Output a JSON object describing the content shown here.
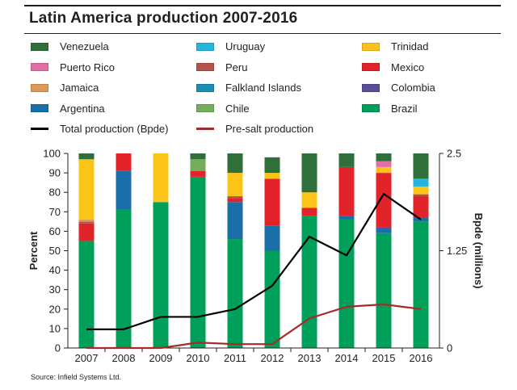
{
  "chart_data": {
    "type": "bar",
    "title": "Latin America production 2007-2016",
    "categories": [
      "2007",
      "2008",
      "2009",
      "2010",
      "2011",
      "2012",
      "2013",
      "2014",
      "2015",
      "2016"
    ],
    "ylabel": "Percent",
    "ylim": [
      0,
      100
    ],
    "yticks": [
      "0",
      "10",
      "20",
      "30",
      "40",
      "50",
      "60",
      "70",
      "80",
      "90",
      "100"
    ],
    "y2label": "Bpde (millions)",
    "y2lim": [
      0,
      2.5
    ],
    "y2ticks": [
      "0",
      "1.25",
      "2.5"
    ],
    "stacked_series": [
      {
        "name": "Brazil",
        "color": "#00a05a",
        "values": [
          55,
          71,
          75,
          88,
          56,
          50,
          68,
          66,
          59,
          65
        ]
      },
      {
        "name": "Argentina",
        "color": "#1b6fa8",
        "values": [
          0,
          20,
          0,
          0,
          19,
          13,
          0,
          2,
          2,
          2
        ]
      },
      {
        "name": "Colombia",
        "color": "#5a4e9a",
        "values": [
          0,
          0,
          0,
          0,
          0,
          0,
          0,
          0,
          1,
          0
        ]
      },
      {
        "name": "Mexico",
        "color": "#e2232a",
        "values": [
          9,
          9,
          0,
          3,
          2,
          24,
          4,
          25,
          28,
          11
        ]
      },
      {
        "name": "Peru",
        "color": "#b5534b",
        "values": [
          1,
          0,
          0,
          0,
          1,
          0,
          0,
          0,
          0,
          1
        ]
      },
      {
        "name": "Jamaica",
        "color": "#e09a57",
        "values": [
          1,
          0,
          0,
          0,
          0,
          0,
          0,
          0,
          0,
          0
        ]
      },
      {
        "name": "Trinidad",
        "color": "#fcc419",
        "values": [
          31,
          0,
          25,
          0,
          12,
          3,
          8,
          0,
          3,
          4
        ]
      },
      {
        "name": "Puerto Rico",
        "color": "#e36ea5",
        "values": [
          0,
          0,
          0,
          0,
          0,
          0,
          0,
          0,
          3,
          0
        ]
      },
      {
        "name": "Falkland Islands",
        "color": "#1a8fb5",
        "values": [
          0,
          0,
          0,
          0,
          0,
          0,
          0,
          0,
          0,
          0
        ]
      },
      {
        "name": "Chile",
        "color": "#74ad5e",
        "values": [
          0,
          0,
          0,
          6,
          0,
          0,
          0,
          0,
          0,
          0
        ]
      },
      {
        "name": "Uruguay",
        "color": "#27b4dd",
        "values": [
          0,
          0,
          0,
          0,
          0,
          0,
          0,
          0,
          0,
          4
        ]
      },
      {
        "name": "Venezuela",
        "color": "#2f6f3a",
        "values": [
          3,
          0,
          0,
          3,
          10,
          8,
          20,
          7,
          4,
          13
        ]
      }
    ],
    "line_series": [
      {
        "name": "Total production (Bpde)",
        "color": "#000000",
        "axis": "right",
        "values": [
          0.24,
          0.24,
          0.4,
          0.4,
          0.5,
          0.8,
          1.43,
          1.19,
          1.98,
          1.65
        ]
      },
      {
        "name": "Pre-salt production",
        "color": "#a32c2c",
        "axis": "right",
        "values": [
          0,
          0,
          0,
          0.07,
          0.05,
          0.05,
          0.38,
          0.53,
          0.56,
          0.5
        ]
      }
    ],
    "legend": [
      {
        "name": "Venezuela",
        "kind": "box",
        "color": "#2f6f3a"
      },
      {
        "name": "Uruguay",
        "kind": "box",
        "color": "#27b4dd"
      },
      {
        "name": "Trinidad",
        "kind": "box",
        "color": "#fcc419"
      },
      {
        "name": "Puerto Rico",
        "kind": "box",
        "color": "#e36ea5"
      },
      {
        "name": "Peru",
        "kind": "box",
        "color": "#b5534b"
      },
      {
        "name": "Mexico",
        "kind": "box",
        "color": "#e2232a"
      },
      {
        "name": "Jamaica",
        "kind": "box",
        "color": "#e09a57"
      },
      {
        "name": "Falkland Islands",
        "kind": "box",
        "color": "#1a8fb5"
      },
      {
        "name": "Colombia",
        "kind": "box",
        "color": "#5a4e9a"
      },
      {
        "name": "Argentina",
        "kind": "box",
        "color": "#1b6fa8"
      },
      {
        "name": "Chile",
        "kind": "box",
        "color": "#74ad5e"
      },
      {
        "name": "Brazil",
        "kind": "box",
        "color": "#00a05a"
      },
      {
        "name": "Total production (Bpde)",
        "kind": "line",
        "color": "#000000"
      },
      {
        "name": "Pre-salt production",
        "kind": "line",
        "color": "#a32c2c"
      }
    ],
    "source": "Source: Infield Systems Ltd."
  }
}
